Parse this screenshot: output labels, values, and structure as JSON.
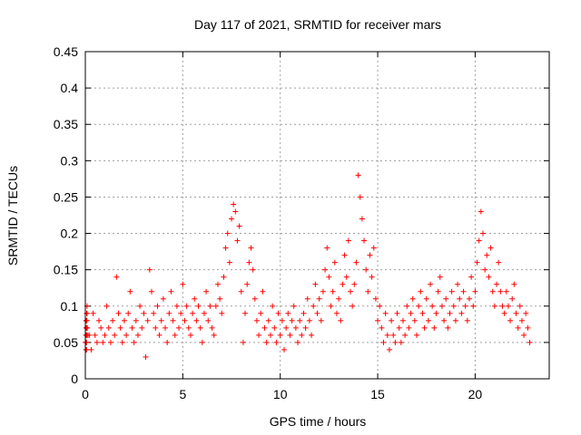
{
  "chart_data": {
    "type": "scatter",
    "title": "Day 117 of 2021, SRMTID for receiver mars",
    "xlabel": "GPS time / hours",
    "ylabel": "SRMTID / TECUs",
    "xlim": [
      0,
      23.8
    ],
    "ylim": [
      0,
      0.45
    ],
    "grid": true,
    "marker": "+",
    "color": "#ff0000",
    "x_ticks": [
      0,
      5,
      10,
      15,
      20
    ],
    "x_tick_labels": [
      "0",
      "5",
      "10",
      "15",
      "20"
    ],
    "y_ticks": [
      0,
      0.05,
      0.1,
      0.15,
      0.2,
      0.25,
      0.3,
      0.35,
      0.4,
      0.45
    ],
    "y_tick_labels": [
      "0",
      "0.05",
      "0.1",
      "0.15",
      "0.2",
      "0.25",
      "0.3",
      "0.35",
      "0.4",
      "0.45"
    ],
    "series": [
      {
        "name": "SRMTID",
        "x": [
          0.0,
          0.1,
          0.2,
          0.3,
          0.4,
          0.5,
          0.6,
          0.7,
          0.8,
          0.9,
          1.0,
          1.1,
          1.2,
          1.3,
          1.4,
          1.5,
          1.6,
          1.7,
          1.8,
          1.9,
          2.0,
          2.1,
          2.2,
          2.3,
          2.4,
          2.5,
          2.6,
          2.7,
          2.8,
          2.9,
          3.0,
          3.1,
          3.2,
          3.3,
          3.4,
          3.5,
          3.6,
          3.7,
          3.8,
          3.9,
          4.0,
          4.1,
          4.2,
          4.3,
          4.4,
          4.5,
          4.6,
          4.7,
          4.8,
          4.9,
          5.0,
          5.1,
          5.2,
          5.3,
          5.4,
          5.5,
          5.6,
          5.7,
          5.8,
          5.9,
          6.0,
          6.1,
          6.2,
          6.3,
          6.4,
          6.5,
          6.6,
          6.7,
          6.8,
          6.9,
          7.0,
          7.1,
          7.2,
          7.3,
          7.4,
          7.5,
          7.6,
          7.7,
          7.8,
          7.9,
          8.0,
          8.1,
          8.2,
          8.3,
          8.4,
          8.5,
          8.6,
          8.7,
          8.8,
          8.9,
          9.0,
          9.1,
          9.2,
          9.3,
          9.4,
          9.5,
          9.6,
          9.7,
          9.8,
          9.9,
          10.0,
          10.1,
          10.2,
          10.3,
          10.4,
          10.5,
          10.6,
          10.7,
          10.8,
          10.9,
          11.0,
          11.1,
          11.2,
          11.3,
          11.4,
          11.5,
          11.6,
          11.7,
          11.8,
          11.9,
          12.0,
          12.1,
          12.2,
          12.3,
          12.4,
          12.5,
          12.6,
          12.7,
          12.8,
          12.9,
          13.0,
          13.1,
          13.2,
          13.3,
          13.4,
          13.5,
          13.6,
          13.7,
          13.8,
          13.9,
          14.0,
          14.1,
          14.2,
          14.3,
          14.4,
          14.5,
          14.6,
          14.7,
          14.8,
          14.9,
          15.0,
          15.1,
          15.2,
          15.3,
          15.4,
          15.5,
          15.6,
          15.7,
          15.8,
          15.9,
          16.0,
          16.1,
          16.2,
          16.3,
          16.4,
          16.5,
          16.6,
          16.7,
          16.8,
          16.9,
          17.0,
          17.1,
          17.2,
          17.3,
          17.4,
          17.5,
          17.6,
          17.7,
          17.8,
          17.9,
          18.0,
          18.1,
          18.2,
          18.3,
          18.4,
          18.5,
          18.6,
          18.7,
          18.8,
          18.9,
          19.0,
          19.1,
          19.2,
          19.3,
          19.4,
          19.5,
          19.6,
          19.7,
          19.8,
          19.9,
          20.0,
          20.1,
          20.2,
          20.3,
          20.4,
          20.5,
          20.6,
          20.7,
          20.8,
          20.9,
          21.0,
          21.1,
          21.2,
          21.3,
          21.4,
          21.5,
          21.6,
          21.7,
          21.8,
          21.9,
          22.0,
          22.1,
          22.2,
          22.3,
          22.4,
          22.5,
          22.6,
          22.7,
          22.8,
          0.05,
          0.13,
          0.09,
          0.06,
          0.04,
          0.07,
          0.05,
          0.03,
          0.08,
          0.06,
          0.04,
          0.07,
          0.09,
          0.05,
          0.06,
          0.04,
          0.03,
          0.06,
          0.08,
          0.05,
          0.07,
          0.06,
          0.04,
          0.09,
          0.06,
          0.05,
          0.08,
          0.07,
          0.05,
          0.06,
          0.1,
          0.07,
          0.05,
          0.08,
          0.06,
          0.14,
          0.09,
          0.07,
          0.05,
          0.08,
          0.06,
          0.09,
          0.12,
          0.07,
          0.05,
          0.08,
          0.06,
          0.1,
          0.07,
          0.09,
          0.03,
          0.08,
          0.15,
          0.12,
          0.09,
          0.07,
          0.1,
          0.06,
          0.08,
          0.11,
          0.07,
          0.05,
          0.09,
          0.12,
          0.08,
          0.06,
          0.1,
          0.07,
          0.09,
          0.13,
          0.08,
          0.1,
          0.07,
          0.06,
          0.09,
          0.11,
          0.08,
          0.1,
          0.07,
          0.05,
          0.09,
          0.12,
          0.08,
          0.1,
          0.07,
          0.06,
          0.1,
          0.13,
          0.11,
          0.09,
          0.14,
          0.18,
          0.2,
          0.16,
          0.22,
          0.24,
          0.23,
          0.19,
          0.21,
          0.12,
          0.05,
          0.09,
          0.13,
          0.16,
          0.18,
          0.15,
          0.11,
          0.08,
          0.06,
          0.09,
          0.12,
          0.07,
          0.05,
          0.08,
          0.06,
          0.1,
          0.07,
          0.05,
          0.09,
          0.06,
          0.08,
          0.04,
          0.07,
          0.09,
          0.06,
          0.08,
          0.1,
          0.07,
          0.05,
          0.08,
          0.06,
          0.09,
          0.07,
          0.11,
          0.08,
          0.06,
          0.1,
          0.13,
          0.09,
          0.11,
          0.08,
          0.12,
          0.15,
          0.18,
          0.14,
          0.1,
          0.12,
          0.16,
          0.09,
          0.11,
          0.08,
          0.13,
          0.17,
          0.14,
          0.19,
          0.12,
          0.1,
          0.13,
          0.16,
          0.28,
          0.25,
          0.22,
          0.19,
          0.15,
          0.12,
          0.17,
          0.14,
          0.18,
          0.11,
          0.08,
          0.1,
          0.07,
          0.05,
          0.09,
          0.06,
          0.04,
          0.08,
          0.06,
          0.05,
          0.09,
          0.07,
          0.05,
          0.08,
          0.06,
          0.1,
          0.07,
          0.09,
          0.11,
          0.08,
          0.06,
          0.1,
          0.12,
          0.09,
          0.07,
          0.11,
          0.08,
          0.13,
          0.1,
          0.07,
          0.09,
          0.12,
          0.14,
          0.1,
          0.08,
          0.11,
          0.07,
          0.09,
          0.12,
          0.1,
          0.08,
          0.13,
          0.11,
          0.09,
          0.12,
          0.1,
          0.08,
          0.11,
          0.14,
          0.1,
          0.12,
          0.16,
          0.19,
          0.23,
          0.2,
          0.15,
          0.17,
          0.14,
          0.18,
          0.12,
          0.1,
          0.13,
          0.16,
          0.12,
          0.1,
          0.09,
          0.12,
          0.1,
          0.08,
          0.11,
          0.13,
          0.09,
          0.07,
          0.1,
          0.08,
          0.06,
          0.09,
          0.07,
          0.05,
          0.08,
          0.06,
          0.1,
          0.07,
          0.05,
          0.09,
          0.06,
          0.04,
          0.08,
          0.07,
          0.05,
          0.06,
          0.09,
          0.07,
          0.05,
          0.08,
          0.06,
          0.04,
          0.07,
          0.06
        ]
      }
    ]
  }
}
